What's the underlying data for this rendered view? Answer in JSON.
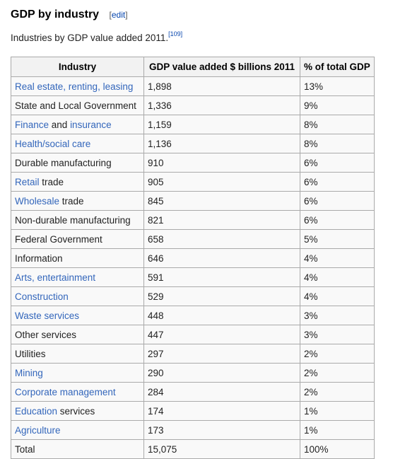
{
  "section": {
    "title": "GDP by industry",
    "edit_open": "[",
    "edit_label": "edit",
    "edit_close": "]"
  },
  "caption": {
    "text": "Industries by GDP value added 2011.",
    "ref": "[109]"
  },
  "colors": {
    "link": "#3366bb",
    "text": "#222222",
    "border": "#aaaaaa",
    "header_bg": "#f2f2f2",
    "table_bg": "#f9f9f9"
  },
  "table": {
    "headers": [
      "Industry",
      "GDP value added $ billions 2011",
      "% of total GDP"
    ],
    "rows": [
      {
        "industry": [
          {
            "text": "Real estate, renting, leasing",
            "link": true
          }
        ],
        "value": "1,898",
        "percent": "13%"
      },
      {
        "industry": [
          {
            "text": "State and Local Government",
            "link": false
          }
        ],
        "value": "1,336",
        "percent": "9%"
      },
      {
        "industry": [
          {
            "text": "Finance",
            "link": true
          },
          {
            "text": " and ",
            "link": false
          },
          {
            "text": "insurance",
            "link": true
          }
        ],
        "value": "1,159",
        "percent": "8%"
      },
      {
        "industry": [
          {
            "text": "Health/social care",
            "link": true
          }
        ],
        "value": "1,136",
        "percent": "8%"
      },
      {
        "industry": [
          {
            "text": "Durable manufacturing",
            "link": false
          }
        ],
        "value": "910",
        "percent": "6%"
      },
      {
        "industry": [
          {
            "text": "Retail",
            "link": true
          },
          {
            "text": " trade",
            "link": false
          }
        ],
        "value": "905",
        "percent": "6%"
      },
      {
        "industry": [
          {
            "text": "Wholesale",
            "link": true
          },
          {
            "text": " trade",
            "link": false
          }
        ],
        "value": "845",
        "percent": "6%"
      },
      {
        "industry": [
          {
            "text": "Non-durable manufacturing",
            "link": false
          }
        ],
        "value": "821",
        "percent": "6%"
      },
      {
        "industry": [
          {
            "text": "Federal Government",
            "link": false
          }
        ],
        "value": "658",
        "percent": "5%"
      },
      {
        "industry": [
          {
            "text": "Information",
            "link": false
          }
        ],
        "value": "646",
        "percent": "4%"
      },
      {
        "industry": [
          {
            "text": "Arts, entertainment",
            "link": true
          }
        ],
        "value": "591",
        "percent": "4%"
      },
      {
        "industry": [
          {
            "text": "Construction",
            "link": true
          }
        ],
        "value": "529",
        "percent": "4%"
      },
      {
        "industry": [
          {
            "text": "Waste services",
            "link": true
          }
        ],
        "value": "448",
        "percent": "3%"
      },
      {
        "industry": [
          {
            "text": "Other services",
            "link": false
          }
        ],
        "value": "447",
        "percent": "3%"
      },
      {
        "industry": [
          {
            "text": "Utilities",
            "link": false
          }
        ],
        "value": "297",
        "percent": "2%"
      },
      {
        "industry": [
          {
            "text": "Mining",
            "link": true
          }
        ],
        "value": "290",
        "percent": "2%"
      },
      {
        "industry": [
          {
            "text": "Corporate management",
            "link": true
          }
        ],
        "value": "284",
        "percent": "2%"
      },
      {
        "industry": [
          {
            "text": "Education",
            "link": true
          },
          {
            "text": " services",
            "link": false
          }
        ],
        "value": "174",
        "percent": "1%"
      },
      {
        "industry": [
          {
            "text": "Agriculture",
            "link": true
          }
        ],
        "value": "173",
        "percent": "1%"
      },
      {
        "industry": [
          {
            "text": "Total",
            "link": false
          }
        ],
        "value": "15,075",
        "percent": "100%"
      }
    ]
  }
}
